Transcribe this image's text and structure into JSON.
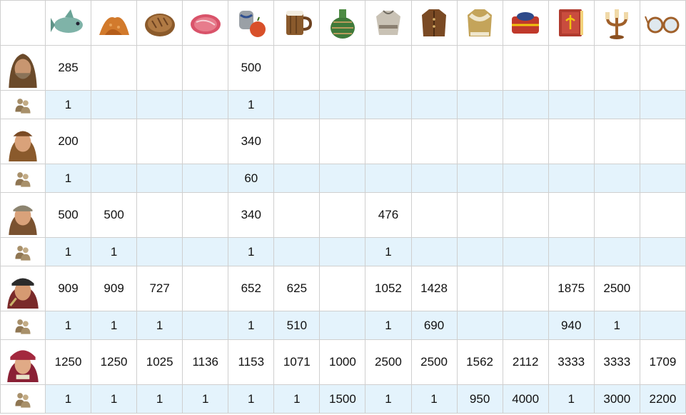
{
  "goods": [
    {
      "icon": "fish-icon"
    },
    {
      "icon": "spice-icon"
    },
    {
      "icon": "bread-icon"
    },
    {
      "icon": "meat-icon"
    },
    {
      "icon": "cider-icon"
    },
    {
      "icon": "beer-icon"
    },
    {
      "icon": "wine-icon"
    },
    {
      "icon": "linen-garments-icon"
    },
    {
      "icon": "leather-jerkin-icon"
    },
    {
      "icon": "fur-coat-icon"
    },
    {
      "icon": "brocade-icon"
    },
    {
      "icon": "books-icon"
    },
    {
      "icon": "candlesticks-icon"
    },
    {
      "icon": "glasses-icon"
    }
  ],
  "tiers": [
    {
      "portrait": "beggar-portrait-icon",
      "pop": [
        "285",
        "",
        "",
        "",
        "500",
        "",
        "",
        "",
        "",
        "",
        "",
        "",
        "",
        ""
      ],
      "ratio": [
        "1",
        "",
        "",
        "",
        "1",
        "",
        "",
        "",
        "",
        "",
        "",
        "",
        "",
        ""
      ]
    },
    {
      "portrait": "peasant-portrait-icon",
      "pop": [
        "200",
        "",
        "",
        "",
        "340",
        "",
        "",
        "",
        "",
        "",
        "",
        "",
        "",
        ""
      ],
      "ratio": [
        "1",
        "",
        "",
        "",
        "60",
        "",
        "",
        "",
        "",
        "",
        "",
        "",
        "",
        ""
      ]
    },
    {
      "portrait": "citizen-portrait-icon",
      "pop": [
        "500",
        "500",
        "",
        "",
        "340",
        "",
        "",
        "476",
        "",
        "",
        "",
        "",
        "",
        ""
      ],
      "ratio": [
        "1",
        "1",
        "",
        "",
        "1",
        "",
        "",
        "1",
        "",
        "",
        "",
        "",
        "",
        ""
      ]
    },
    {
      "portrait": "patrician-portrait-icon",
      "pop": [
        "909",
        "909",
        "727",
        "",
        "652",
        "625",
        "",
        "1052",
        "1428",
        "",
        "",
        "1875",
        "2500",
        ""
      ],
      "ratio": [
        "1",
        "1",
        "1",
        "",
        "1",
        "510",
        "",
        "1",
        "690",
        "",
        "",
        "940",
        "1",
        ""
      ]
    },
    {
      "portrait": "nobleman-portrait-icon",
      "pop": [
        "1250",
        "1250",
        "1025",
        "1136",
        "1153",
        "1071",
        "1000",
        "2500",
        "2500",
        "1562",
        "2112",
        "3333",
        "3333",
        "1709"
      ],
      "ratio": [
        "1",
        "1",
        "1",
        "1",
        "1",
        "1",
        "1500",
        "1",
        "1",
        "950",
        "4000",
        "1",
        "3000",
        "2200"
      ]
    }
  ],
  "colors": {
    "ratio_row_bg": "#e4f3fc",
    "border": "#cfcfcf"
  },
  "ratio_icon": "two-people-icon"
}
